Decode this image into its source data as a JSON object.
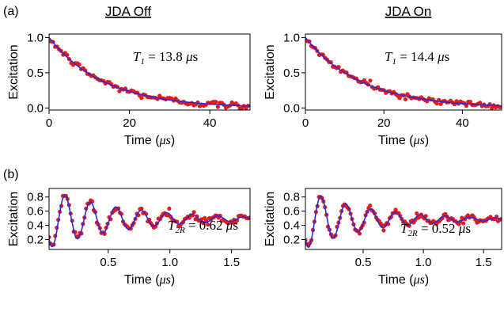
{
  "panel_labels": [
    "(a)",
    "(b)"
  ],
  "column_titles": [
    "JDA Off",
    "JDA On"
  ],
  "colors": {
    "data": "#e41a1c",
    "fit": "#2b2bd6",
    "axis": "#000000"
  },
  "chart_data": [
    {
      "id": "a-off",
      "type": "scatter",
      "row": "a",
      "column": "JDA Off",
      "xlabel": "Time",
      "xunit": "μs",
      "ylabel": "Excitation",
      "xlim": [
        0,
        50
      ],
      "ylim": [
        -0.03,
        1.05
      ],
      "xticks": [
        0,
        20,
        40
      ],
      "yticks": [
        0.0,
        0.5,
        1.0
      ],
      "yticklabels": [
        "0.0",
        "0.5",
        "1.0"
      ],
      "annotation": {
        "symbol": "T",
        "sub": "1",
        "value": "13.8",
        "unit": "μs"
      },
      "model": {
        "kind": "exp",
        "T": 13.8
      },
      "series": [
        {
          "role": "data",
          "x_start": 0,
          "x_step": 0.5,
          "count": 100,
          "noise": 0.025
        },
        {
          "role": "fit"
        }
      ]
    },
    {
      "id": "a-on",
      "type": "scatter",
      "row": "a",
      "column": "JDA On",
      "xlabel": "Time",
      "xunit": "μs",
      "ylabel": "Excitation",
      "xlim": [
        0,
        50
      ],
      "ylim": [
        -0.03,
        1.05
      ],
      "xticks": [
        0,
        20,
        40
      ],
      "yticks": [
        0.0,
        0.5,
        1.0
      ],
      "yticklabels": [
        "0.0",
        "0.5",
        "1.0"
      ],
      "annotation": {
        "symbol": "T",
        "sub": "1",
        "value": "14.4",
        "unit": "μs"
      },
      "model": {
        "kind": "exp",
        "T": 14.4
      },
      "series": [
        {
          "role": "data",
          "x_start": 0,
          "x_step": 0.5,
          "count": 100,
          "noise": 0.02
        },
        {
          "role": "fit"
        }
      ]
    },
    {
      "id": "b-off",
      "type": "scatter",
      "row": "b",
      "column": "JDA Off",
      "xlabel": "Time",
      "xunit": "μs",
      "ylabel": "Excitation",
      "xlim": [
        0.02,
        1.65
      ],
      "ylim": [
        0.06,
        0.92
      ],
      "xticks": [
        0.5,
        1.0,
        1.5
      ],
      "yticks": [
        0.2,
        0.4,
        0.6,
        0.8
      ],
      "xticklabels": [
        "0.5",
        "1.0",
        "1.5"
      ],
      "annotation": {
        "symbol": "T",
        "sub": "2R",
        "value": "0.62",
        "unit": "μs"
      },
      "model": {
        "kind": "ramsey",
        "T": 0.62,
        "period": 0.2066,
        "offset": 0.49,
        "amp": 0.42,
        "peak_time": 0.15
      },
      "series": [
        {
          "role": "data",
          "x_start": 0.02,
          "x_step": 0.0125,
          "count": 131,
          "noise": 0.025
        },
        {
          "role": "fit"
        }
      ]
    },
    {
      "id": "b-on",
      "type": "scatter",
      "row": "b",
      "column": "JDA On",
      "xlabel": "Time",
      "xunit": "μs",
      "ylabel": "Excitation",
      "xlim": [
        0.02,
        1.65
      ],
      "ylim": [
        0.06,
        0.92
      ],
      "xticks": [
        0.5,
        1.0,
        1.5
      ],
      "yticks": [
        0.2,
        0.4,
        0.6,
        0.8
      ],
      "xticklabels": [
        "0.5",
        "1.0",
        "1.5"
      ],
      "annotation": {
        "symbol": "T",
        "sub": "2R",
        "value": "0.52",
        "unit": "μs"
      },
      "model": {
        "kind": "ramsey",
        "T": 0.52,
        "period": 0.2066,
        "offset": 0.485,
        "amp": 0.43,
        "peak_time": 0.15
      },
      "series": [
        {
          "role": "data",
          "x_start": 0.02,
          "x_step": 0.0125,
          "count": 131,
          "noise": 0.022
        },
        {
          "role": "fit"
        }
      ]
    }
  ]
}
